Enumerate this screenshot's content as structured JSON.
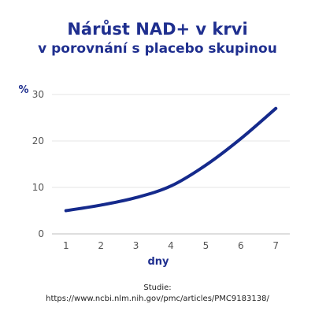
{
  "chart_data": {
    "type": "line",
    "title": "Nárůst NAD+ v krvi",
    "subtitle": "v porovnání s placebo skupinou",
    "ylabel": "%",
    "xlabel": "dny",
    "ylim": [
      0,
      30
    ],
    "yticks": [
      0,
      10,
      20,
      30
    ],
    "xlim": [
      1,
      7
    ],
    "x": [
      1,
      2,
      3,
      4,
      5,
      6,
      7
    ],
    "series": [
      {
        "values": [
          5,
          6.2,
          7.8,
          10.3,
          14.8,
          20.5,
          27
        ]
      }
    ],
    "grid": true,
    "line_color": "#152a8c"
  },
  "source": {
    "label": "Studie:",
    "url": "https://www.ncbi.nlm.nih.gov/pmc/articles/PMC9183138/"
  }
}
